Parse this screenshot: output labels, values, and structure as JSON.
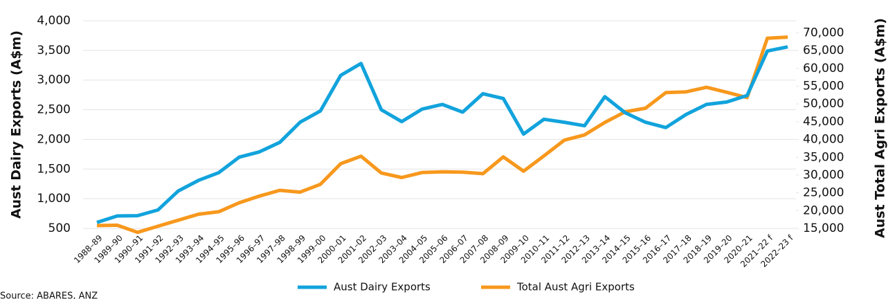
{
  "chart_data": {
    "type": "line",
    "categories": [
      "1988–89",
      "1989–90",
      "1990–91",
      "1991–92",
      "1992–93",
      "1993–94",
      "1994–95",
      "1995–96",
      "1996–97",
      "1997–98",
      "1998–99",
      "1999–00",
      "2000–01",
      "2001–02",
      "2002–03",
      "2003–04",
      "2004–05",
      "2005–06",
      "2006–07",
      "2007–08",
      "2008–09",
      "2009–10",
      "2010–11",
      "2011–12",
      "2012–13",
      "2013–14",
      "2014–15",
      "2015–16",
      "2016–17",
      "2017–18",
      "2018–19",
      "2019–20",
      "2020–21",
      "2021–22 f",
      "2022–23 f"
    ],
    "series": [
      {
        "name": "Aust Dairy Exports",
        "color": "#12a3dc",
        "values": [
          600,
          710,
          715,
          810,
          1130,
          1310,
          1440,
          1700,
          1790,
          1950,
          2290,
          2480,
          3080,
          3280,
          2500,
          2300,
          2510,
          2590,
          2460,
          2770,
          2690,
          2090,
          2340,
          2290,
          2230,
          2720,
          2450,
          2290,
          2200,
          2420,
          2590,
          2630,
          2740,
          3490,
          3560
        ]
      },
      {
        "name": "Total Aust Agri Exports",
        "color": "#f7981d",
        "axis": "y2",
        "values": [
          15800,
          15900,
          13900,
          15600,
          17300,
          19000,
          19700,
          22200,
          24100,
          25700,
          25200,
          27400,
          33200,
          35300,
          30600,
          29300,
          30700,
          30900,
          30800,
          30400,
          35100,
          31100,
          35400,
          39800,
          41300,
          44800,
          47800,
          48800,
          53200,
          53400,
          54700,
          53300,
          51800,
          68500,
          68800
        ]
      }
    ],
    "ylabel": "Aust Dairy Exports (A$m)",
    "y2label": "Aust Total Agri Exports (A$m)",
    "ylim": [
      500,
      4000
    ],
    "yticks": [
      500,
      {
        "value": 1000,
        "label": "1,000"
      },
      {
        "value": 1500,
        "label": "1,500"
      },
      {
        "value": 2000,
        "label": "2,000"
      },
      {
        "value": 2500,
        "label": "2,500"
      },
      {
        "value": 3000,
        "label": "3,000"
      },
      {
        "value": 3500,
        "label": "3,500"
      },
      {
        "value": 4000,
        "label": "4,000"
      }
    ],
    "y2lim": [
      15000,
      73400
    ],
    "y2ticks": [
      {
        "value": 15000,
        "label": "15,000"
      },
      {
        "value": 20000,
        "label": "20,000"
      },
      {
        "value": 25000,
        "label": "25,000"
      },
      {
        "value": 30000,
        "label": "30,000"
      },
      {
        "value": 35000,
        "label": "35,000"
      },
      {
        "value": 40000,
        "label": "40,000"
      },
      {
        "value": 45000,
        "label": "45,000"
      },
      {
        "value": 50000,
        "label": "50,000"
      },
      {
        "value": 55000,
        "label": "55,000"
      },
      {
        "value": 60000,
        "label": "60,000"
      },
      {
        "value": 65000,
        "label": "65,000"
      },
      {
        "value": 70000,
        "label": "70,000"
      }
    ],
    "grid": true,
    "legend": "bottom",
    "source": "Source: ABARES, ANZ"
  }
}
